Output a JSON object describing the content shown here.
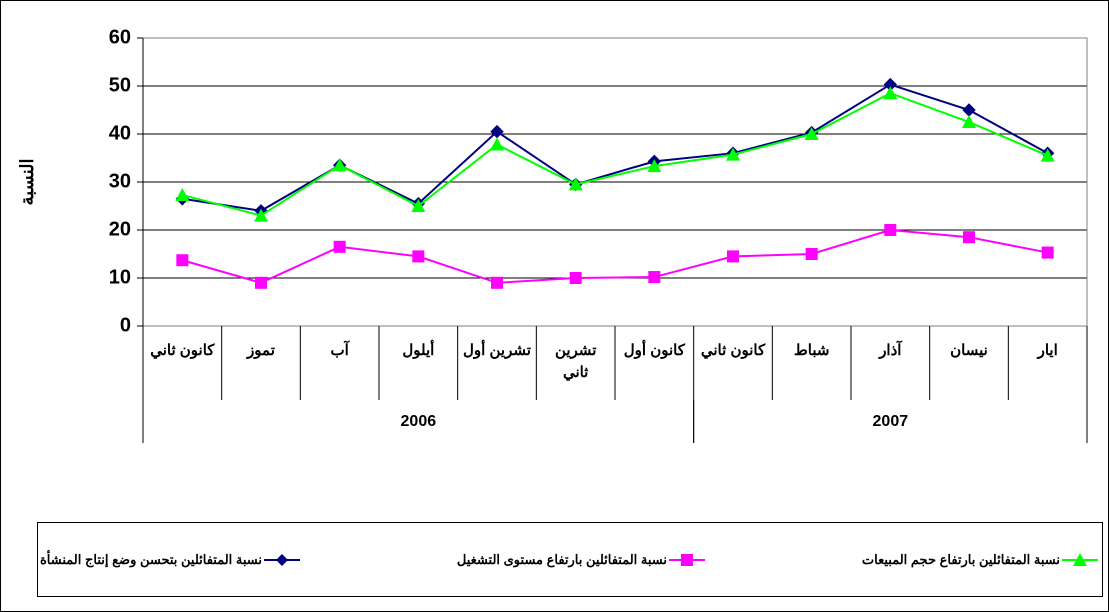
{
  "chart_data": {
    "type": "line",
    "y_label": "النسبة",
    "categories": [
      "كانون ثاني",
      "تموز",
      "آب",
      "أيلول",
      "تشرين أول",
      "تشرين ثاني",
      "كانون أول",
      "كانون ثاني",
      "شباط",
      "آذار",
      "نيسان",
      "ايار"
    ],
    "groups": [
      {
        "label": "2006",
        "span": 7
      },
      {
        "label": "2007",
        "span": 5
      }
    ],
    "ylim": [
      0,
      60
    ],
    "yticks": [
      0,
      10,
      20,
      30,
      40,
      50,
      60
    ],
    "grid": true,
    "series": [
      {
        "name": "نسبة المتفائلين بتحسن وضع إنتاج المنشأة",
        "color": "#000080",
        "marker": "diamond",
        "values": [
          26.5,
          24,
          33.5,
          25.5,
          40.5,
          29.5,
          34.3,
          36,
          40.3,
          50.3,
          45,
          36
        ]
      },
      {
        "name": "نسبة المتفائلين بارتفاع مستوى التشغيل",
        "color": "#ff00ff",
        "marker": "square",
        "values": [
          13.7,
          9,
          16.5,
          14.5,
          9,
          10,
          10.2,
          14.5,
          15,
          20,
          18.5,
          15.3
        ]
      },
      {
        "name": "نسبة المتفائلين بارتفاع حجم المبيعات",
        "color": "#00ff00",
        "marker": "triangle",
        "values": [
          27.3,
          23,
          33.5,
          25,
          37.8,
          29.5,
          33.3,
          35.7,
          40,
          48.5,
          42.5,
          35.5
        ]
      }
    ]
  }
}
